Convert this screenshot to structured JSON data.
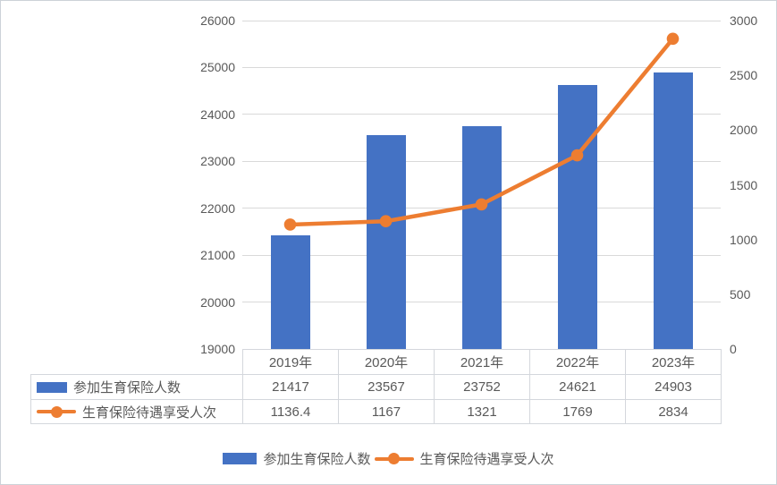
{
  "window": {
    "background": "#ffffff",
    "border_color": "#cdd2d8",
    "text_color": "#595959",
    "gridline_color": "#d9d9d9"
  },
  "chart_data": {
    "type": "bar",
    "combo": "bar+line",
    "title": "",
    "categories": [
      "2019年",
      "2020年",
      "2021年",
      "2022年",
      "2023年"
    ],
    "series": [
      {
        "name": "参加生育保险人数",
        "type": "bar",
        "axis": "left",
        "color": "#4472c4",
        "values": [
          21417,
          23567,
          23752,
          24621,
          24903
        ],
        "labels": [
          "21417",
          "23567",
          "23752",
          "24621",
          "24903"
        ]
      },
      {
        "name": "生育保险待遇享受人次",
        "type": "line",
        "axis": "right",
        "color": "#ed7d31",
        "values": [
          1136.4,
          1167,
          1321,
          1769,
          2834
        ],
        "labels": [
          "1136.4",
          "1167",
          "1321",
          "1769",
          "2834"
        ]
      }
    ],
    "left_axis": {
      "min": 19000,
      "max": 26000,
      "step": 1000,
      "tick_labels": [
        "19000",
        "20000",
        "21000",
        "22000",
        "23000",
        "24000",
        "25000",
        "26000"
      ]
    },
    "right_axis": {
      "min": 0,
      "max": 3000,
      "step": 500,
      "tick_labels": [
        "0",
        "500",
        "1000",
        "1500",
        "2000",
        "2500",
        "3000"
      ]
    },
    "grid": true,
    "legend_position": "bottom",
    "data_table_visible": true
  }
}
